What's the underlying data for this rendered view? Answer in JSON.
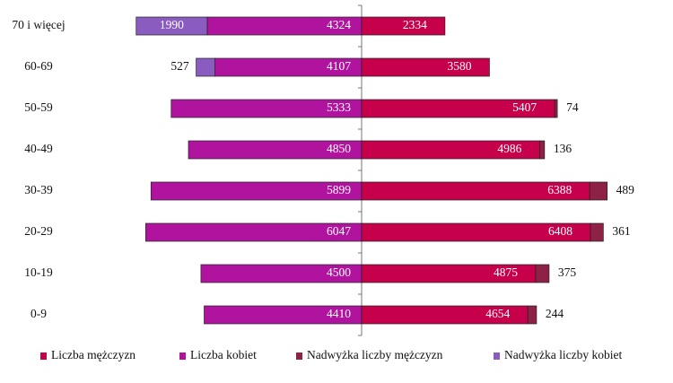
{
  "chart_data": {
    "type": "pyramid",
    "categories": [
      "70 i więcej",
      "60-69",
      "50-59",
      "40-49",
      "30-39",
      "20-29",
      "10-19",
      "0-9"
    ],
    "series": [
      {
        "name": "Liczba mężczyzn",
        "color": "#c6004b",
        "side": "right",
        "values": [
          2334,
          3580,
          5407,
          4986,
          6388,
          6408,
          4875,
          4654
        ]
      },
      {
        "name": "Liczba kobiet",
        "color": "#b0139e",
        "side": "left",
        "values": [
          4324,
          4107,
          5333,
          4850,
          5899,
          6047,
          4500,
          4410
        ]
      },
      {
        "name": "Nadwyżka liczby mężczyzn",
        "color": "#8e2146",
        "side": "right",
        "values": [
          null,
          null,
          74,
          136,
          489,
          361,
          375,
          244
        ]
      },
      {
        "name": "Nadwyżka liczby kobiet",
        "color": "#8a5cc0",
        "side": "left",
        "values": [
          1990,
          527,
          null,
          null,
          null,
          null,
          null,
          null
        ]
      }
    ]
  }
}
